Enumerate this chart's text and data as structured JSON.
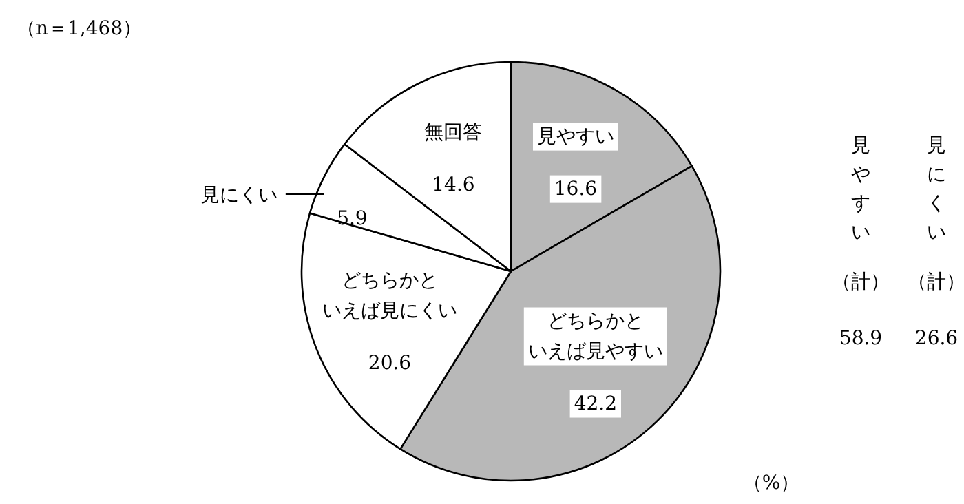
{
  "chart_data": {
    "type": "pie",
    "title": "（n＝1,468）",
    "categories": [
      "見やすい",
      "どちらかといえば見やすい",
      "どちらかといえば見にくい",
      "見にくい",
      "無回答"
    ],
    "values": [
      16.6,
      42.2,
      20.6,
      5.9,
      14.6
    ],
    "colors": [
      "#b8b8b8",
      "#b8b8b8",
      "#ffffff",
      "#ffffff",
      "#ffffff"
    ],
    "data_labels": true,
    "annotations": [
      "見やすい（計）",
      "58.9",
      "見にくい（計）",
      "26.6",
      "（%）"
    ]
  }
}
